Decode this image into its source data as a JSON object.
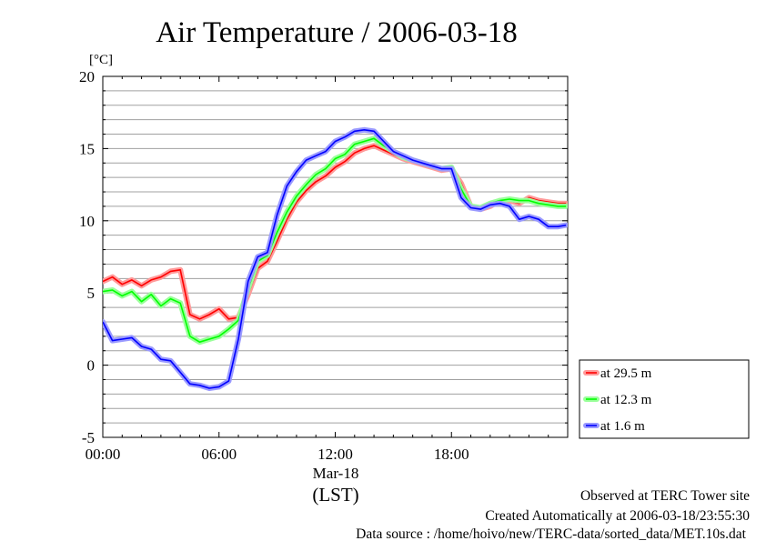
{
  "chart_data": {
    "type": "line",
    "title": "Air Temperature / 2006-03-18",
    "ylabel": "[°C]",
    "xlabel": "(LST)",
    "x_date_label": "Mar-18",
    "xlim": [
      "00:00",
      "24:00"
    ],
    "ylim": [
      -5,
      20
    ],
    "y_ticks": [
      -5,
      0,
      5,
      10,
      15,
      20
    ],
    "x_ticks": [
      "00:00",
      "06:00",
      "12:00",
      "18:00"
    ],
    "grid": true,
    "legend_position": "right-bottom",
    "x": [
      "00:00",
      "00:30",
      "01:00",
      "01:30",
      "02:00",
      "02:30",
      "03:00",
      "03:30",
      "04:00",
      "04:30",
      "05:00",
      "05:30",
      "06:00",
      "06:30",
      "07:00",
      "07:30",
      "08:00",
      "08:30",
      "09:00",
      "09:30",
      "10:00",
      "10:30",
      "11:00",
      "11:30",
      "12:00",
      "12:30",
      "13:00",
      "13:30",
      "14:00",
      "14:30",
      "15:00",
      "15:30",
      "16:00",
      "16:30",
      "17:00",
      "17:30",
      "18:00",
      "18:30",
      "19:00",
      "19:30",
      "20:00",
      "20:30",
      "21:00",
      "21:30",
      "22:00",
      "22:30",
      "23:00",
      "23:30",
      "23:55"
    ],
    "series": [
      {
        "name": "at 29.5 m",
        "color": "#ff0000",
        "values": [
          5.8,
          6.1,
          5.6,
          5.9,
          5.5,
          5.9,
          6.1,
          6.5,
          6.6,
          3.5,
          3.2,
          3.5,
          3.9,
          3.2,
          3.3,
          4.9,
          6.7,
          7.2,
          8.6,
          10.1,
          11.3,
          12.1,
          12.7,
          13.1,
          13.7,
          14.1,
          14.7,
          15.0,
          15.2,
          14.9,
          14.6,
          14.3,
          14.1,
          13.9,
          13.7,
          13.5,
          13.6,
          12.6,
          11.0,
          10.8,
          11.0,
          11.4,
          11.4,
          11.2,
          11.6,
          11.4,
          11.3,
          11.2,
          11.2
        ]
      },
      {
        "name": "at 12.3 m",
        "color": "#00ff00",
        "values": [
          5.1,
          5.2,
          4.8,
          5.1,
          4.4,
          4.9,
          4.1,
          4.6,
          4.3,
          2.0,
          1.6,
          1.8,
          2.0,
          2.5,
          3.1,
          5.3,
          7.2,
          7.6,
          9.2,
          10.6,
          11.7,
          12.5,
          13.2,
          13.6,
          14.3,
          14.6,
          15.3,
          15.5,
          15.7,
          15.2,
          14.8,
          14.4,
          14.2,
          14.0,
          13.8,
          13.6,
          13.7,
          12.2,
          11.0,
          10.9,
          11.2,
          11.4,
          11.5,
          11.4,
          11.4,
          11.2,
          11.1,
          11.0,
          11.0
        ]
      },
      {
        "name": "at 1.6 m",
        "color": "#0000ff",
        "values": [
          3.0,
          1.7,
          1.8,
          1.9,
          1.3,
          1.1,
          0.4,
          0.3,
          -0.5,
          -1.3,
          -1.4,
          -1.6,
          -1.5,
          -1.1,
          1.8,
          5.8,
          7.5,
          7.8,
          10.4,
          12.4,
          13.4,
          14.2,
          14.5,
          14.8,
          15.5,
          15.8,
          16.2,
          16.3,
          16.2,
          15.5,
          14.8,
          14.5,
          14.2,
          14.0,
          13.8,
          13.6,
          13.6,
          11.6,
          10.9,
          10.8,
          11.1,
          11.2,
          11.0,
          10.1,
          10.3,
          10.1,
          9.6,
          9.6,
          9.7
        ]
      }
    ],
    "notes": [
      "Observed at TERC Tower site",
      "Created Automatically at 2006-03-18/23:55:30",
      "Data source : /home/hoivo/new/TERC-data/sorted_data/MET.10s.dat"
    ]
  }
}
